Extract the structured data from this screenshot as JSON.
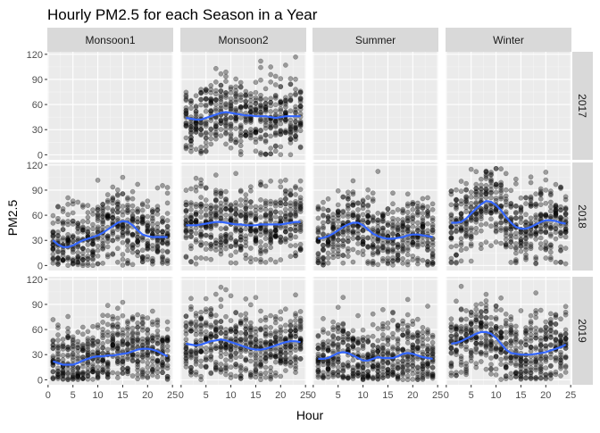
{
  "chart_data": {
    "type": "scatter",
    "title": "Hourly PM2.5 for each Season in a Year",
    "xlabel": "Hour",
    "ylabel": "PM2.5",
    "xlim": [
      0,
      25
    ],
    "ylim": [
      0,
      120
    ],
    "xticks": [
      0,
      5,
      10,
      15,
      20,
      25
    ],
    "yticks": [
      0,
      30,
      60,
      90,
      120
    ],
    "grid": true,
    "columns": [
      "Monsoon1",
      "Monsoon2",
      "Summer",
      "Winter"
    ],
    "rows": [
      "2017",
      "2018",
      "2019"
    ],
    "point_color": "#000000",
    "smooth_color": "#3366FF",
    "hours": [
      1,
      2,
      3,
      4,
      5,
      6,
      7,
      8,
      9,
      10,
      11,
      12,
      13,
      14,
      15,
      16,
      17,
      18,
      19,
      20,
      21,
      22,
      23,
      24
    ],
    "panels": [
      {
        "year": "2017",
        "season": "Monsoon1",
        "smooth": null
      },
      {
        "year": "2017",
        "season": "Monsoon2",
        "smooth": [
          44,
          43,
          42,
          42,
          44,
          46,
          48,
          50,
          51,
          50,
          49,
          48,
          47,
          47,
          46,
          46,
          46,
          45,
          44,
          45,
          46,
          46,
          46,
          46
        ]
      },
      {
        "year": "2017",
        "season": "Summer",
        "smooth": null
      },
      {
        "year": "2017",
        "season": "Winter",
        "smooth": null
      },
      {
        "year": "2018",
        "season": "Monsoon1",
        "smooth": [
          30,
          25,
          22,
          22,
          24,
          27,
          30,
          32,
          34,
          36,
          39,
          43,
          47,
          51,
          53,
          52,
          48,
          42,
          37,
          35,
          34,
          34,
          34,
          34
        ]
      },
      {
        "year": "2018",
        "season": "Monsoon2",
        "smooth": [
          48,
          48,
          48,
          49,
          50,
          51,
          52,
          52,
          51,
          50,
          49,
          49,
          48,
          48,
          48,
          49,
          49,
          49,
          49,
          49,
          50,
          51,
          52,
          52
        ]
      },
      {
        "year": "2018",
        "season": "Summer",
        "smooth": [
          32,
          33,
          35,
          38,
          42,
          46,
          49,
          51,
          51,
          48,
          43,
          38,
          35,
          33,
          32,
          32,
          33,
          34,
          36,
          37,
          37,
          36,
          35,
          34
        ]
      },
      {
        "year": "2018",
        "season": "Winter",
        "smooth": [
          51,
          51,
          52,
          56,
          62,
          68,
          73,
          77,
          76,
          72,
          66,
          58,
          51,
          46,
          44,
          44,
          46,
          49,
          52,
          54,
          54,
          53,
          51,
          50
        ]
      },
      {
        "year": "2019",
        "season": "Monsoon1",
        "smooth": [
          22,
          20,
          18,
          18,
          18,
          20,
          23,
          25,
          27,
          28,
          28,
          29,
          29,
          30,
          31,
          32,
          34,
          36,
          37,
          37,
          36,
          34,
          31,
          28
        ]
      },
      {
        "year": "2019",
        "season": "Monsoon2",
        "smooth": [
          43,
          42,
          41,
          42,
          44,
          46,
          47,
          48,
          47,
          45,
          43,
          41,
          39,
          37,
          36,
          36,
          37,
          39,
          41,
          43,
          45,
          46,
          46,
          45
        ]
      },
      {
        "year": "2019",
        "season": "Summer",
        "smooth": [
          25,
          25,
          26,
          29,
          32,
          33,
          32,
          29,
          26,
          23,
          23,
          25,
          27,
          26,
          26,
          26,
          28,
          31,
          32,
          31,
          29,
          27,
          26,
          25
        ]
      },
      {
        "year": "2019",
        "season": "Winter",
        "smooth": [
          43,
          44,
          46,
          49,
          52,
          55,
          57,
          57,
          55,
          50,
          43,
          36,
          32,
          31,
          30,
          30,
          30,
          31,
          32,
          33,
          35,
          37,
          39,
          42
        ]
      }
    ]
  }
}
